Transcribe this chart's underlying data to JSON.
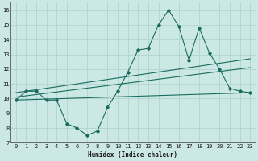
{
  "title": "",
  "xlabel": "Humidex (Indice chaleur)",
  "ylabel": "",
  "background_color": "#cce8e4",
  "grid_color": "#b0d4d0",
  "line_color": "#1a6b60",
  "xlim": [
    -0.5,
    23.5
  ],
  "ylim": [
    7,
    16.5
  ],
  "yticks": [
    7,
    8,
    9,
    10,
    11,
    12,
    13,
    14,
    15,
    16
  ],
  "xticks": [
    0,
    1,
    2,
    3,
    4,
    5,
    6,
    7,
    8,
    9,
    10,
    11,
    12,
    13,
    14,
    15,
    16,
    17,
    18,
    19,
    20,
    21,
    22,
    23
  ],
  "series1_x": [
    0,
    1,
    2,
    3,
    4,
    5,
    6,
    7,
    8,
    9,
    10,
    11,
    12,
    13,
    14,
    15,
    16,
    17,
    18,
    19,
    20,
    21,
    22,
    23
  ],
  "series1_y": [
    9.9,
    10.5,
    10.5,
    9.9,
    9.9,
    8.3,
    8.0,
    7.5,
    7.8,
    9.4,
    10.5,
    11.8,
    13.3,
    13.4,
    15.0,
    16.0,
    14.9,
    12.6,
    14.8,
    13.1,
    12.0,
    10.7,
    10.5,
    10.4
  ],
  "series2_x": [
    0,
    23
  ],
  "series2_y": [
    10.1,
    12.1
  ],
  "series3_x": [
    0,
    23
  ],
  "series3_y": [
    10.4,
    12.7
  ],
  "series4_x": [
    0,
    23
  ],
  "series4_y": [
    9.9,
    10.4
  ]
}
